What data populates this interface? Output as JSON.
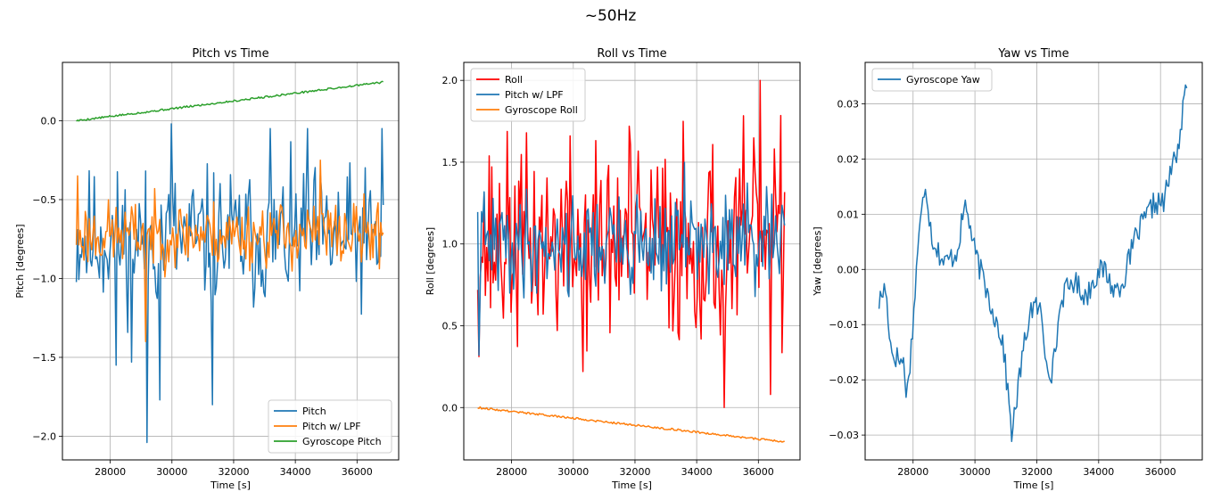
{
  "suptitle": "~50Hz",
  "chart_data": [
    {
      "type": "line",
      "title": "Pitch vs Time",
      "xlabel": "Time [s]",
      "ylabel": "Pitch [degrees]",
      "xlim": [
        26450,
        37350
      ],
      "ylim": [
        -2.15,
        0.37
      ],
      "xticks": [
        28000,
        30000,
        32000,
        34000,
        36000
      ],
      "yticks": [
        0.0,
        -0.5,
        -1.0,
        -1.5,
        -2.0
      ],
      "ytick_labels": [
        "0.0",
        "−0.5",
        "−1.0",
        "−1.5",
        "−2.0"
      ],
      "grid": true,
      "legend": "lower-right",
      "series": [
        {
          "name": "Pitch",
          "color": "#1f77b4",
          "seed": 11,
          "shape": "noise",
          "x0": 26900,
          "x1": 36850,
          "n": 240,
          "base": -0.75,
          "amp": 0.27,
          "spikes": [
            [
              29200,
              -2.04
            ],
            [
              31300,
              -1.8
            ],
            [
              29600,
              -1.77
            ],
            [
              28200,
              -1.55
            ],
            [
              28700,
              -1.53
            ],
            [
              33200,
              -0.05
            ],
            [
              34400,
              -0.05
            ],
            [
              36800,
              -0.05
            ],
            [
              30000,
              -0.02
            ]
          ]
        },
        {
          "name": "Pitch w/ LPF",
          "color": "#ff7f0e",
          "seed": 23,
          "shape": "noise",
          "x0": 26900,
          "x1": 36850,
          "n": 240,
          "base": -0.72,
          "amp": 0.13,
          "spikes": [
            [
              29150,
              -1.4
            ],
            [
              34800,
              -0.25
            ],
            [
              26950,
              -0.35
            ]
          ]
        },
        {
          "name": "Gyroscope Pitch",
          "color": "#2ca02c",
          "seed": 5,
          "shape": "ramp",
          "x0": 26900,
          "x1": 36850,
          "n": 240,
          "start": 0.0,
          "end": 0.245,
          "amp": 0.006
        }
      ]
    },
    {
      "type": "line",
      "title": "Roll vs Time",
      "xlabel": "Time [s]",
      "ylabel": "Roll [degrees]",
      "xlim": [
        26450,
        37350
      ],
      "ylim": [
        -0.32,
        2.11
      ],
      "xticks": [
        28000,
        30000,
        32000,
        34000,
        36000
      ],
      "yticks": [
        0.0,
        0.5,
        1.0,
        1.5,
        2.0
      ],
      "ytick_labels": [
        "0.0",
        "0.5",
        "1.0",
        "1.5",
        "2.0"
      ],
      "grid": true,
      "legend": "upper-left",
      "series": [
        {
          "name": "Roll",
          "color": "#ff0000",
          "seed": 37,
          "shape": "noise",
          "x0": 26900,
          "x1": 36850,
          "n": 240,
          "base": 1.0,
          "amp": 0.38,
          "spikes": [
            [
              36050,
              2.0
            ],
            [
              33550,
              1.75
            ],
            [
              31800,
              1.72
            ],
            [
              34900,
              0.0
            ],
            [
              36400,
              0.08
            ],
            [
              30300,
              0.22
            ]
          ]
        },
        {
          "name": "Pitch w/ LPF",
          "color": "#1f77b4",
          "seed": 41,
          "shape": "noise",
          "x0": 26900,
          "x1": 36850,
          "n": 240,
          "base": 1.0,
          "amp": 0.19,
          "spikes": [
            [
              26950,
              0.32
            ],
            [
              33600,
              1.5
            ]
          ]
        },
        {
          "name": "Gyroscope Roll",
          "color": "#ff7f0e",
          "seed": 9,
          "shape": "ramp",
          "x0": 26900,
          "x1": 36850,
          "n": 240,
          "start": 0.0,
          "end": -0.21,
          "amp": 0.006
        }
      ]
    },
    {
      "type": "line",
      "title": "Yaw vs Time",
      "xlabel": "Time [s]",
      "ylabel": "Yaw [degrees]",
      "xlim": [
        26450,
        37350
      ],
      "ylim": [
        -0.0345,
        0.0375
      ],
      "xticks": [
        28000,
        30000,
        32000,
        34000,
        36000
      ],
      "yticks": [
        0.03,
        0.02,
        0.01,
        0.0,
        -0.01,
        -0.02,
        -0.03
      ],
      "ytick_labels": [
        "0.03",
        "0.02",
        "0.01",
        "0.00",
        "−0.01",
        "−0.02",
        "−0.03"
      ],
      "grid": true,
      "legend": "upper-left",
      "series": [
        {
          "name": "Gyroscope Yaw",
          "color": "#1f77b4",
          "seed": 17,
          "shape": "path",
          "x0": 26900,
          "x1": 36850,
          "n": 240,
          "amp": 0.0022,
          "anchors": [
            [
              26900,
              -0.006
            ],
            [
              27100,
              -0.003
            ],
            [
              27300,
              -0.015
            ],
            [
              27700,
              -0.017
            ],
            [
              27800,
              -0.023
            ],
            [
              28000,
              -0.01
            ],
            [
              28150,
              0.004
            ],
            [
              28400,
              0.016
            ],
            [
              28600,
              0.006
            ],
            [
              29000,
              0.001
            ],
            [
              29400,
              0.003
            ],
            [
              29700,
              0.012
            ],
            [
              30000,
              0.003
            ],
            [
              30500,
              -0.006
            ],
            [
              30900,
              -0.013
            ],
            [
              31200,
              -0.03
            ],
            [
              31500,
              -0.017
            ],
            [
              31800,
              -0.007
            ],
            [
              32100,
              -0.007
            ],
            [
              32300,
              -0.016
            ],
            [
              32500,
              -0.019
            ],
            [
              32800,
              -0.005
            ],
            [
              33200,
              -0.002
            ],
            [
              33600,
              -0.005
            ],
            [
              33900,
              -0.001
            ],
            [
              34200,
              0.0
            ],
            [
              34500,
              -0.004
            ],
            [
              34800,
              -0.002
            ],
            [
              35200,
              0.006
            ],
            [
              35500,
              0.009
            ],
            [
              35800,
              0.012
            ],
            [
              36100,
              0.012
            ],
            [
              36300,
              0.017
            ],
            [
              36600,
              0.023
            ],
            [
              36850,
              0.034
            ]
          ]
        }
      ]
    }
  ]
}
